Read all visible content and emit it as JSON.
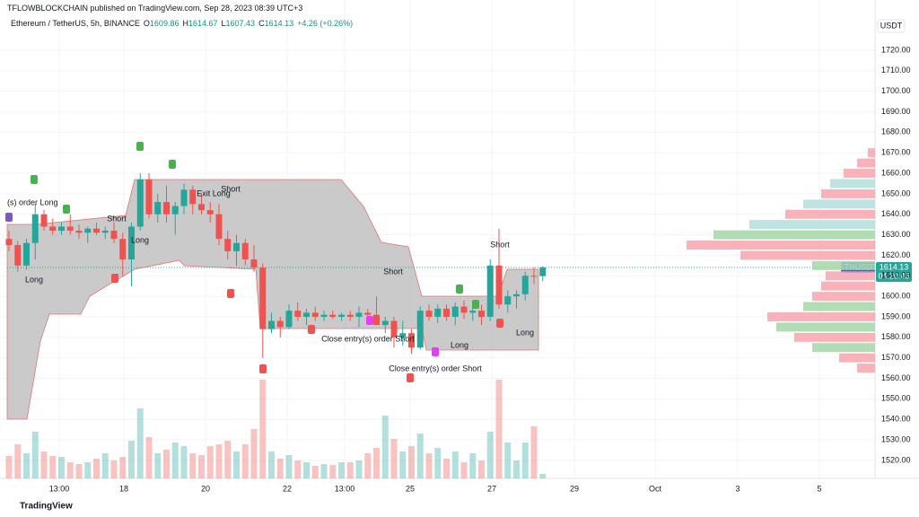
{
  "published": "TFLOWBLOCKCHAIN published on TradingView.com, Sep 28, 2023 08:39 UTC+3",
  "footer": "TradingView",
  "chart_data": {
    "type": "candlestick",
    "symbol": "Ethereum / TetherUS, 5h, BINANCE",
    "ohlc_labels": [
      "O",
      "H",
      "L",
      "C"
    ],
    "change": "+4.26 (+0.26%)",
    "currency": "USDT",
    "symbol_tag": "ETHUSDT",
    "countdown": "04:20:45",
    "up_color": "#26a69a",
    "down_color": "#ef5350",
    "grid": true,
    "open": [
      1628,
      1625,
      1615,
      1626,
      1640,
      1634,
      1632,
      1634,
      1632,
      1631,
      1633,
      1631,
      1632,
      1628,
      1618,
      1634,
      1657,
      1640,
      1646,
      1640,
      1644,
      1652,
      1645,
      1642,
      1640,
      1628,
      1622,
      1626,
      1618,
      1614,
      1584,
      1588,
      1585,
      1593,
      1590,
      1592,
      1590,
      1591,
      1590,
      1591,
      1590,
      1592,
      1591,
      1586,
      1588,
      1580,
      1582,
      1575,
      1593,
      1590,
      1594,
      1590,
      1595,
      1592,
      1593,
      1590,
      1615,
      1596,
      1600,
      1601,
      1610,
      1609.86
    ],
    "high": [
      1632,
      1627,
      1628,
      1645,
      1642,
      1638,
      1636,
      1640,
      1635,
      1634,
      1636,
      1634,
      1636,
      1631,
      1636,
      1660,
      1660,
      1650,
      1654,
      1646,
      1655,
      1654,
      1650,
      1646,
      1645,
      1632,
      1630,
      1628,
      1625,
      1616,
      1592,
      1590,
      1596,
      1597,
      1594,
      1595,
      1593,
      1593,
      1592,
      1593,
      1595,
      1594,
      1600,
      1590,
      1590,
      1588,
      1584,
      1595,
      1596,
      1596,
      1596,
      1597,
      1598,
      1595,
      1596,
      1618,
      1633,
      1603,
      1603,
      1612,
      1614,
      1614.67
    ],
    "low": [
      1622,
      1612,
      1613,
      1618,
      1632,
      1630,
      1630,
      1630,
      1628,
      1626,
      1630,
      1628,
      1626,
      1610,
      1605,
      1632,
      1638,
      1636,
      1636,
      1630,
      1640,
      1640,
      1640,
      1636,
      1625,
      1618,
      1615,
      1615,
      1612,
      1570,
      1582,
      1580,
      1584,
      1588,
      1586,
      1588,
      1588,
      1589,
      1588,
      1588,
      1585,
      1588,
      1588,
      1582,
      1575,
      1576,
      1572,
      1574,
      1588,
      1587,
      1588,
      1586,
      1589,
      1588,
      1586,
      1588,
      1594,
      1592,
      1594,
      1598,
      1606,
      1607.43
    ],
    "close": [
      1625,
      1615,
      1626,
      1640,
      1634,
      1632,
      1634,
      1632,
      1631,
      1633,
      1631,
      1632,
      1628,
      1618,
      1634,
      1657,
      1640,
      1646,
      1640,
      1644,
      1652,
      1645,
      1642,
      1640,
      1628,
      1622,
      1626,
      1618,
      1614,
      1584,
      1588,
      1585,
      1593,
      1590,
      1592,
      1590,
      1591,
      1590,
      1591,
      1590,
      1592,
      1591,
      1586,
      1588,
      1580,
      1582,
      1575,
      1593,
      1590,
      1594,
      1590,
      1595,
      1592,
      1593,
      1590,
      1615,
      1596,
      1600,
      1601,
      1610,
      1609.86,
      1614.13
    ],
    "volume": [
      25,
      38,
      28,
      52,
      30,
      25,
      24,
      18,
      16,
      18,
      22,
      28,
      20,
      24,
      42,
      78,
      46,
      28,
      32,
      40,
      36,
      28,
      26,
      36,
      38,
      42,
      30,
      38,
      55,
      110,
      30,
      22,
      26,
      20,
      18,
      14,
      16,
      15,
      18,
      18,
      20,
      28,
      34,
      70,
      44,
      30,
      36,
      50,
      28,
      34,
      22,
      30,
      18,
      28,
      20,
      52,
      110,
      40,
      20,
      40,
      58,
      5
    ],
    "ylim": [
      1511.2,
      1744.5
    ],
    "yticks": [
      {
        "value": 1520,
        "label": "1520.00"
      },
      {
        "value": 1530,
        "label": "1530.00"
      },
      {
        "value": 1540,
        "label": "1540.00"
      },
      {
        "value": 1550,
        "label": "1550.00"
      },
      {
        "value": 1560,
        "label": "1560.00"
      },
      {
        "value": 1570,
        "label": "1570.00"
      },
      {
        "value": 1580,
        "label": "1580.00"
      },
      {
        "value": 1590,
        "label": "1590.00"
      },
      {
        "value": 1600,
        "label": "1600.00"
      },
      {
        "value": 1610,
        "label": "1610.00"
      },
      {
        "value": 1620,
        "label": "1620.00"
      },
      {
        "value": 1630,
        "label": "1630.00"
      },
      {
        "value": 1640,
        "label": "1640.00"
      },
      {
        "value": 1650,
        "label": "1650.00"
      },
      {
        "value": 1660,
        "label": "1660.00"
      },
      {
        "value": 1670,
        "label": "1670.00"
      },
      {
        "value": 1680,
        "label": "1680.00"
      },
      {
        "value": 1690,
        "label": "1690.00"
      },
      {
        "value": 1700,
        "label": "1700.00"
      },
      {
        "value": 1710,
        "label": "1710.00"
      },
      {
        "value": 1720,
        "label": "1720.00"
      }
    ],
    "x_labels": [
      "13:00",
      "18",
      "20",
      "22",
      "13:00",
      "25",
      "27",
      "29",
      "Oct",
      "3",
      "5"
    ],
    "profile_prices": [
      1565,
      1570,
      1575,
      1580,
      1585,
      1590,
      1595,
      1600,
      1605,
      1610,
      1615,
      1620,
      1625,
      1630,
      1635,
      1640,
      1645,
      1650,
      1655,
      1660,
      1665,
      1670
    ],
    "profile_values": [
      20,
      40,
      70,
      90,
      110,
      120,
      80,
      70,
      60,
      55,
      70,
      150,
      210,
      180,
      140,
      100,
      80,
      60,
      50,
      35,
      20,
      8
    ],
    "profile_colors": [
      "#f8a5ad",
      "#f8a5ad",
      "#a5d6a7",
      "#f8a5ad",
      "#a5d6a7",
      "#f8a5ad",
      "#a5d6a7",
      "#f8a5ad",
      "#f8a5ad",
      "#f8a5ad",
      "#a5d6a7",
      "#f8a5ad",
      "#f8a5ad",
      "#a5d6a7",
      "#b2dfdb",
      "#f8a5ad",
      "#b2dfdb",
      "#f8a5ad",
      "#b2dfdb",
      "#f8a5ad",
      "#f8a5ad",
      "#f8a5ad"
    ],
    "annotations": [
      "(s) order Long",
      "Long",
      "Short",
      "Long",
      "Exit Long",
      "Short",
      "Short",
      "Close entry(s) order Short",
      "Close entry(s) order Short",
      "Long",
      "Short",
      "Long"
    ]
  }
}
